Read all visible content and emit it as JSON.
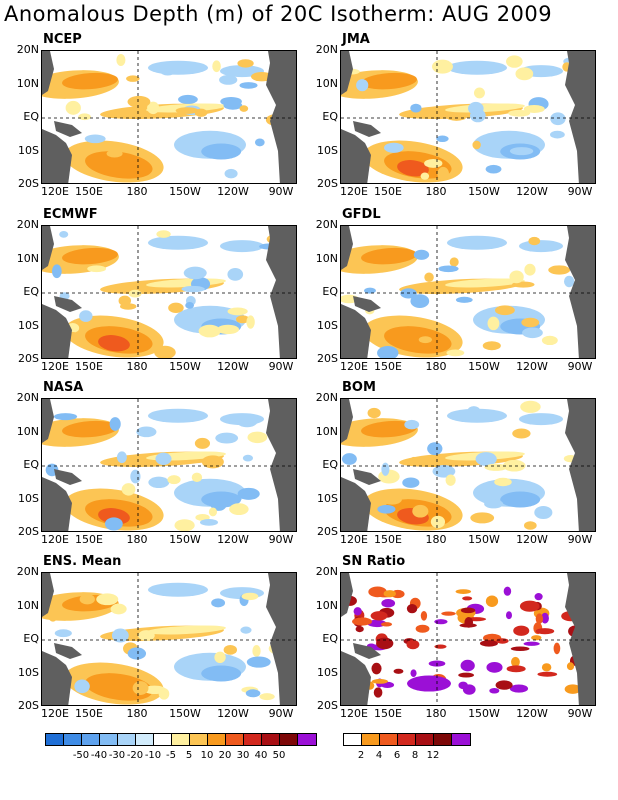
{
  "title": "Anomalous Depth (m) of 20C Isotherm: AUG 2009",
  "lat_ticks": [
    "20N",
    "10N",
    "EQ",
    "10S",
    "20S"
  ],
  "lon_ticks": [
    "120E",
    "150E",
    "180",
    "150W",
    "120W",
    "90W"
  ],
  "panels": [
    {
      "label": "NCEP",
      "pattern": 0
    },
    {
      "label": "JMA",
      "pattern": 1
    },
    {
      "label": "ECMWF",
      "pattern": 2
    },
    {
      "label": "GFDL",
      "pattern": 3
    },
    {
      "label": "NASA",
      "pattern": 4
    },
    {
      "label": "BOM",
      "pattern": 5
    },
    {
      "label": "ENS. Mean",
      "pattern": 6
    },
    {
      "label": "SN Ratio",
      "pattern": 7
    }
  ],
  "legend_anomaly": {
    "labels": [
      "-50",
      "-40",
      "-30",
      "-20",
      "-10",
      "-5",
      "5",
      "10",
      "20",
      "30",
      "40",
      "50"
    ],
    "colors": [
      "#1f6fd6",
      "#3f8ce6",
      "#5ea2ee",
      "#82bcf4",
      "#a9d4f8",
      "#d2ecfc",
      "#ffffff",
      "#fff0a0",
      "#fcc554",
      "#f89a1e",
      "#ef5a1e",
      "#d2281e",
      "#a80f14",
      "#7d0808",
      "#9b10d6"
    ]
  },
  "legend_snr": {
    "labels": [
      "2",
      "4",
      "6",
      "8",
      "12"
    ],
    "colors": [
      "#ffffff",
      "#f89a1e",
      "#ef5a1e",
      "#d2281e",
      "#a80f14",
      "#7d0808",
      "#9b10d6"
    ]
  },
  "colors": {
    "land": "#5f5f5f",
    "positive_light": "#fff0a0",
    "positive_mid": "#fcc554",
    "positive_strong": "#f89a1e",
    "positive_high": "#ef5a1e",
    "negative_light": "#a9d4f8",
    "negative_mid": "#82bcf4",
    "negative_strong": "#5ea2ee"
  }
}
